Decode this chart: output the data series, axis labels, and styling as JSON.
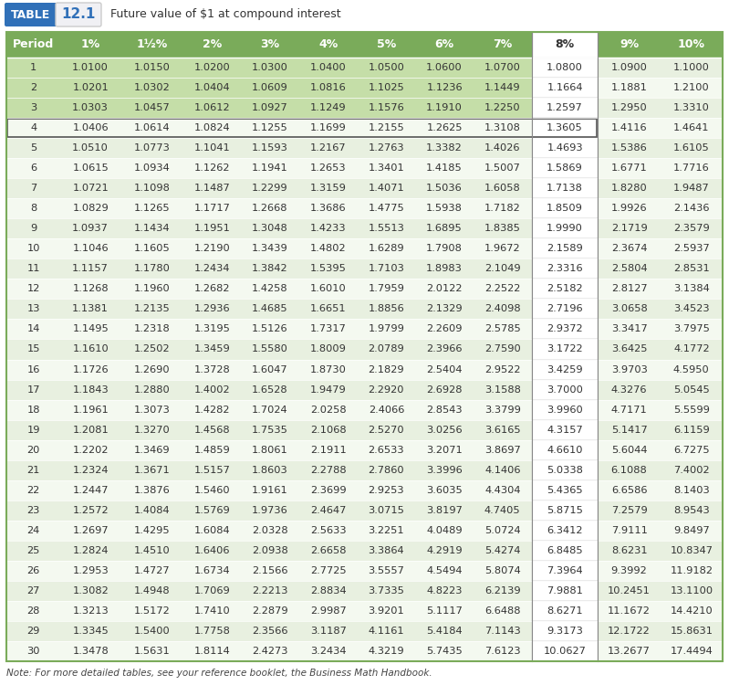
{
  "title_table": "TABLE",
  "title_number": "12.1",
  "title_desc": "Future value of $1 at compound interest",
  "note": "Note: For more detailed tables, see your reference booklet, the Business Math Handbook.",
  "columns": [
    "Period",
    "1%",
    "1½%",
    "2%",
    "3%",
    "4%",
    "5%",
    "6%",
    "7%",
    "8%",
    "9%",
    "10%"
  ],
  "col8_idx": 9,
  "rows": [
    [
      1,
      1.01,
      1.015,
      1.02,
      1.03,
      1.04,
      1.05,
      1.06,
      1.07,
      1.08,
      1.09,
      1.1
    ],
    [
      2,
      1.0201,
      1.0302,
      1.0404,
      1.0609,
      1.0816,
      1.1025,
      1.1236,
      1.1449,
      1.1664,
      1.1881,
      1.21
    ],
    [
      3,
      1.0303,
      1.0457,
      1.0612,
      1.0927,
      1.1249,
      1.1576,
      1.191,
      1.225,
      1.2597,
      1.295,
      1.331
    ],
    [
      4,
      1.0406,
      1.0614,
      1.0824,
      1.1255,
      1.1699,
      1.2155,
      1.2625,
      1.3108,
      1.3605,
      1.4116,
      1.4641
    ],
    [
      5,
      1.051,
      1.0773,
      1.1041,
      1.1593,
      1.2167,
      1.2763,
      1.3382,
      1.4026,
      1.4693,
      1.5386,
      1.6105
    ],
    [
      6,
      1.0615,
      1.0934,
      1.1262,
      1.1941,
      1.2653,
      1.3401,
      1.4185,
      1.5007,
      1.5869,
      1.6771,
      1.7716
    ],
    [
      7,
      1.0721,
      1.1098,
      1.1487,
      1.2299,
      1.3159,
      1.4071,
      1.5036,
      1.6058,
      1.7138,
      1.828,
      1.9487
    ],
    [
      8,
      1.0829,
      1.1265,
      1.1717,
      1.2668,
      1.3686,
      1.4775,
      1.5938,
      1.7182,
      1.8509,
      1.9926,
      2.1436
    ],
    [
      9,
      1.0937,
      1.1434,
      1.1951,
      1.3048,
      1.4233,
      1.5513,
      1.6895,
      1.8385,
      1.999,
      2.1719,
      2.3579
    ],
    [
      10,
      1.1046,
      1.1605,
      1.219,
      1.3439,
      1.4802,
      1.6289,
      1.7908,
      1.9672,
      2.1589,
      2.3674,
      2.5937
    ],
    [
      11,
      1.1157,
      1.178,
      1.2434,
      1.3842,
      1.5395,
      1.7103,
      1.8983,
      2.1049,
      2.3316,
      2.5804,
      2.8531
    ],
    [
      12,
      1.1268,
      1.196,
      1.2682,
      1.4258,
      1.601,
      1.7959,
      2.0122,
      2.2522,
      2.5182,
      2.8127,
      3.1384
    ],
    [
      13,
      1.1381,
      1.2135,
      1.2936,
      1.4685,
      1.6651,
      1.8856,
      2.1329,
      2.4098,
      2.7196,
      3.0658,
      3.4523
    ],
    [
      14,
      1.1495,
      1.2318,
      1.3195,
      1.5126,
      1.7317,
      1.9799,
      2.2609,
      2.5785,
      2.9372,
      3.3417,
      3.7975
    ],
    [
      15,
      1.161,
      1.2502,
      1.3459,
      1.558,
      1.8009,
      2.0789,
      2.3966,
      2.759,
      3.1722,
      3.6425,
      4.1772
    ],
    [
      16,
      1.1726,
      1.269,
      1.3728,
      1.6047,
      1.873,
      2.1829,
      2.5404,
      2.9522,
      3.4259,
      3.9703,
      4.595
    ],
    [
      17,
      1.1843,
      1.288,
      1.4002,
      1.6528,
      1.9479,
      2.292,
      2.6928,
      3.1588,
      3.7,
      4.3276,
      5.0545
    ],
    [
      18,
      1.1961,
      1.3073,
      1.4282,
      1.7024,
      2.0258,
      2.4066,
      2.8543,
      3.3799,
      3.996,
      4.7171,
      5.5599
    ],
    [
      19,
      1.2081,
      1.327,
      1.4568,
      1.7535,
      2.1068,
      2.527,
      3.0256,
      3.6165,
      4.3157,
      5.1417,
      6.1159
    ],
    [
      20,
      1.2202,
      1.3469,
      1.4859,
      1.8061,
      2.1911,
      2.6533,
      3.2071,
      3.8697,
      4.661,
      5.6044,
      6.7275
    ],
    [
      21,
      1.2324,
      1.3671,
      1.5157,
      1.8603,
      2.2788,
      2.786,
      3.3996,
      4.1406,
      5.0338,
      6.1088,
      7.4002
    ],
    [
      22,
      1.2447,
      1.3876,
      1.546,
      1.9161,
      2.3699,
      2.9253,
      3.6035,
      4.4304,
      5.4365,
      6.6586,
      8.1403
    ],
    [
      23,
      1.2572,
      1.4084,
      1.5769,
      1.9736,
      2.4647,
      3.0715,
      3.8197,
      4.7405,
      5.8715,
      7.2579,
      8.9543
    ],
    [
      24,
      1.2697,
      1.4295,
      1.6084,
      2.0328,
      2.5633,
      3.2251,
      4.0489,
      5.0724,
      6.3412,
      7.9111,
      9.8497
    ],
    [
      25,
      1.2824,
      1.451,
      1.6406,
      2.0938,
      2.6658,
      3.3864,
      4.2919,
      5.4274,
      6.8485,
      8.6231,
      10.8347
    ],
    [
      26,
      1.2953,
      1.4727,
      1.6734,
      2.1566,
      2.7725,
      3.5557,
      4.5494,
      5.8074,
      7.3964,
      9.3992,
      11.9182
    ],
    [
      27,
      1.3082,
      1.4948,
      1.7069,
      2.2213,
      2.8834,
      3.7335,
      4.8223,
      6.2139,
      7.9881,
      10.2451,
      13.11
    ],
    [
      28,
      1.3213,
      1.5172,
      1.741,
      2.2879,
      2.9987,
      3.9201,
      5.1117,
      6.6488,
      8.6271,
      11.1672,
      14.421
    ],
    [
      29,
      1.3345,
      1.54,
      1.7758,
      2.3566,
      3.1187,
      4.1161,
      5.4184,
      7.1143,
      9.3173,
      12.1722,
      15.8631
    ],
    [
      30,
      1.3478,
      1.5631,
      1.8114,
      2.4273,
      3.2434,
      4.3219,
      5.7435,
      7.6123,
      10.0627,
      13.2677,
      17.4494
    ]
  ],
  "header_bg": "#7aab5a",
  "header_fg": "#ffffff",
  "row_even_bg": "#e8f0e0",
  "row_odd_bg": "#f4f9f0",
  "highlight_row_bg": "#c5dea8",
  "col8_bg": "#ffffff",
  "col8_border": "#999999",
  "table_border_color": "#7aab5a",
  "title_bg_table": "#3070b8",
  "title_bg_num": "#f0f0f0",
  "title_num_color": "#3070b8",
  "font_size": 8.2,
  "header_font_size": 9.0
}
